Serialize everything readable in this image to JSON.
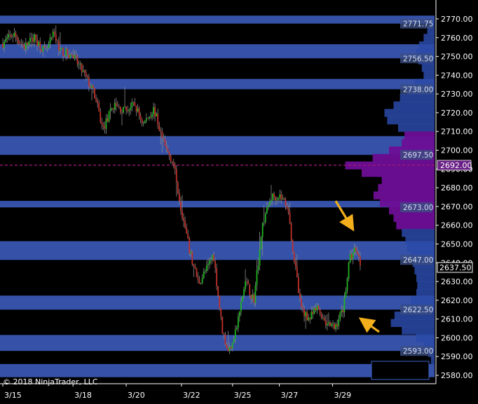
{
  "chart_data": {
    "type": "candlestick",
    "copyright": "© 2018 NinjaTrader, LLC",
    "ylim": [
      2576,
      2785
    ],
    "y_ticks": [
      "2770.00",
      "2760.00",
      "2750.00",
      "2740.00",
      "2730.00",
      "2720.00",
      "2710.00",
      "2700.00",
      "2690.00",
      "2680.00",
      "2670.00",
      "2660.00",
      "2650.00",
      "2640.00",
      "2630.00",
      "2620.00",
      "2610.00",
      "2600.00",
      "2590.00",
      "2580.00"
    ],
    "x_ticks": [
      "3/15",
      "3/18",
      "3/20",
      "3/22",
      "3/25",
      "3/27",
      "3/29"
    ],
    "current_price": "2637.50",
    "poc_price": "2692.00",
    "colors": {
      "up": "#1fb31f",
      "down": "#c0302a",
      "band": "#3552a8",
      "profile": "#2a4aa8",
      "profile_value_area": "#6d0e96",
      "poc_line": "#a01878",
      "arrow": "#f2ae1b",
      "axis_text": "#ffffff"
    },
    "bands": [
      {
        "low": 2767.5,
        "high": 2771.75,
        "label": "2771.75"
      },
      {
        "low": 2749.0,
        "high": 2756.5,
        "label": "2756.50"
      },
      {
        "low": 2732.5,
        "high": 2738.0,
        "label": "2738.00"
      },
      {
        "low": 2697.5,
        "high": 2707.5,
        "label": "2697.50"
      },
      {
        "low": 2669.5,
        "high": 2673.0,
        "label": "2673.00"
      },
      {
        "low": 2641.5,
        "high": 2651.5,
        "label": "2647.00"
      },
      {
        "low": 2615.0,
        "high": 2622.5,
        "label": "2622.50"
      },
      {
        "low": 2593.0,
        "high": 2601.5,
        "label": "2593.00"
      },
      {
        "low": 2579.0,
        "high": 2586.0,
        "label": ""
      }
    ],
    "price_path": [
      {
        "x": 0,
        "y": 2757
      },
      {
        "x": 5,
        "y": 2762
      },
      {
        "x": 10,
        "y": 2755
      },
      {
        "x": 15,
        "y": 2760
      },
      {
        "x": 20,
        "y": 2752
      },
      {
        "x": 24,
        "y": 2762
      },
      {
        "x": 27,
        "y": 2753
      },
      {
        "x": 33,
        "y": 2750
      },
      {
        "x": 38,
        "y": 2741
      },
      {
        "x": 43,
        "y": 2730
      },
      {
        "x": 47,
        "y": 2711
      },
      {
        "x": 52,
        "y": 2724
      },
      {
        "x": 57,
        "y": 2721
      },
      {
        "x": 62,
        "y": 2724
      },
      {
        "x": 66,
        "y": 2714
      },
      {
        "x": 71,
        "y": 2722
      },
      {
        "x": 76,
        "y": 2702
      },
      {
        "x": 80,
        "y": 2694
      },
      {
        "x": 84,
        "y": 2668
      },
      {
        "x": 88,
        "y": 2645
      },
      {
        "x": 92,
        "y": 2629
      },
      {
        "x": 96,
        "y": 2637
      },
      {
        "x": 99,
        "y": 2645
      },
      {
        "x": 103,
        "y": 2605
      },
      {
        "x": 106,
        "y": 2592
      },
      {
        "x": 110,
        "y": 2606
      },
      {
        "x": 114,
        "y": 2630
      },
      {
        "x": 118,
        "y": 2620
      },
      {
        "x": 122,
        "y": 2660
      },
      {
        "x": 126,
        "y": 2675
      },
      {
        "x": 130,
        "y": 2676
      },
      {
        "x": 134,
        "y": 2670
      },
      {
        "x": 136,
        "y": 2650
      },
      {
        "x": 140,
        "y": 2616
      },
      {
        "x": 144,
        "y": 2610
      },
      {
        "x": 148,
        "y": 2616
      },
      {
        "x": 152,
        "y": 2608
      },
      {
        "x": 156,
        "y": 2605
      },
      {
        "x": 160,
        "y": 2616
      },
      {
        "x": 163,
        "y": 2642
      },
      {
        "x": 166,
        "y": 2648
      },
      {
        "x": 168,
        "y": 2640
      }
    ],
    "volume_profile": [
      {
        "price": 2768,
        "volume": 0.05
      },
      {
        "price": 2764,
        "volume": 0.08
      },
      {
        "price": 2760,
        "volume": 0.12
      },
      {
        "price": 2756,
        "volume": 0.17
      },
      {
        "price": 2752,
        "volume": 0.2
      },
      {
        "price": 2748,
        "volume": 0.18
      },
      {
        "price": 2744,
        "volume": 0.14
      },
      {
        "price": 2740,
        "volume": 0.12
      },
      {
        "price": 2736,
        "volume": 0.22
      },
      {
        "price": 2732,
        "volume": 0.3
      },
      {
        "price": 2728,
        "volume": 0.38
      },
      {
        "price": 2724,
        "volume": 0.45
      },
      {
        "price": 2720,
        "volume": 0.55
      },
      {
        "price": 2716,
        "volume": 0.52
      },
      {
        "price": 2712,
        "volume": 0.4
      },
      {
        "price": 2708,
        "volume": 0.33
      },
      {
        "price": 2704,
        "volume": 0.36
      },
      {
        "price": 2700,
        "volume": 0.5
      },
      {
        "price": 2696,
        "volume": 0.68
      },
      {
        "price": 2692,
        "volume": 0.98
      },
      {
        "price": 2688,
        "volume": 0.8
      },
      {
        "price": 2684,
        "volume": 0.58
      },
      {
        "price": 2680,
        "volume": 0.62
      },
      {
        "price": 2676,
        "volume": 0.67
      },
      {
        "price": 2672,
        "volume": 0.6
      },
      {
        "price": 2668,
        "volume": 0.5
      },
      {
        "price": 2664,
        "volume": 0.45
      },
      {
        "price": 2660,
        "volume": 0.42
      },
      {
        "price": 2656,
        "volume": 0.36
      },
      {
        "price": 2652,
        "volume": 0.32
      },
      {
        "price": 2648,
        "volume": 0.3
      },
      {
        "price": 2644,
        "volume": 0.26
      },
      {
        "price": 2640,
        "volume": 0.24
      },
      {
        "price": 2636,
        "volume": 0.22
      },
      {
        "price": 2632,
        "volume": 0.2
      },
      {
        "price": 2628,
        "volume": 0.19
      },
      {
        "price": 2624,
        "volume": 0.2
      },
      {
        "price": 2620,
        "volume": 0.26
      },
      {
        "price": 2616,
        "volume": 0.36
      },
      {
        "price": 2612,
        "volume": 0.44
      },
      {
        "price": 2608,
        "volume": 0.48
      },
      {
        "price": 2604,
        "volume": 0.36
      },
      {
        "price": 2600,
        "volume": 0.2
      },
      {
        "price": 2596,
        "volume": 0.12
      },
      {
        "price": 2592,
        "volume": 0.07
      },
      {
        "price": 2588,
        "volume": 0.04
      }
    ],
    "value_area": [
      2658,
      2708
    ]
  }
}
